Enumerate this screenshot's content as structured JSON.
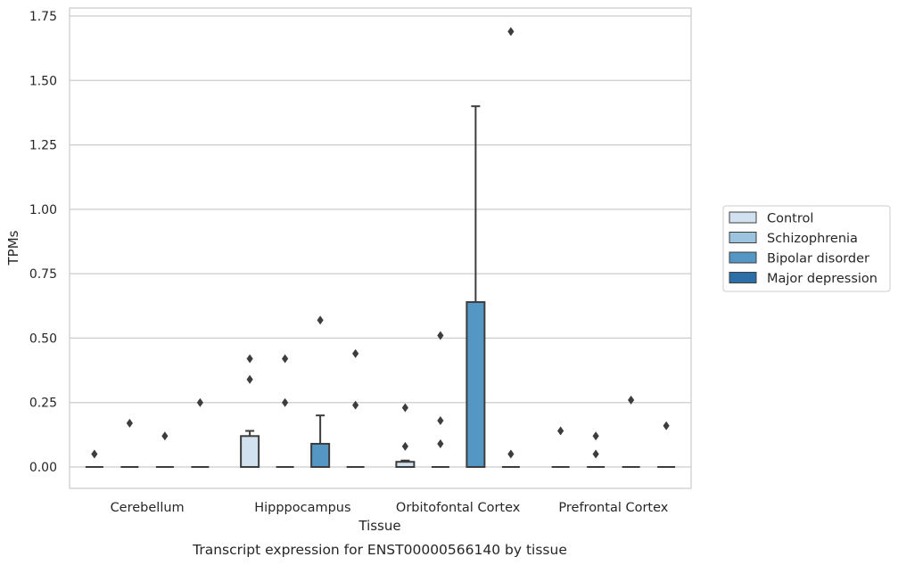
{
  "chart_data": {
    "type": "box",
    "title": "Transcript expression for ENST00000566140 by tissue",
    "xlabel": "Tissue",
    "ylabel": "TPMs",
    "ylim": [
      -0.08,
      1.77
    ],
    "yticks": [
      "0.00",
      "0.25",
      "0.50",
      "0.75",
      "1.00",
      "1.25",
      "1.50",
      "1.75"
    ],
    "grid": true,
    "legend_position": "right",
    "categories": [
      "Cerebellum",
      "Hipppocampus",
      "Orbitofontal Cortex",
      "Prefrontal Cortex"
    ],
    "series": [
      {
        "name": "Control",
        "color": "#d2e1f0",
        "boxes": [
          {
            "q1": 0,
            "median": 0,
            "q3": 0,
            "whisker_low": 0,
            "whisker_high": 0,
            "outliers": [
              0.05
            ]
          },
          {
            "q1": 0,
            "median": 0,
            "q3": 0.12,
            "whisker_low": 0,
            "whisker_high": 0.14,
            "outliers": [
              0.34,
              0.42
            ]
          },
          {
            "q1": 0,
            "median": 0,
            "q3": 0.02,
            "whisker_low": 0,
            "whisker_high": 0.025,
            "outliers": [
              0.08,
              0.23
            ]
          },
          {
            "q1": 0,
            "median": 0,
            "q3": 0,
            "whisker_low": 0,
            "whisker_high": 0,
            "outliers": [
              0.14
            ]
          }
        ]
      },
      {
        "name": "Schizophrenia",
        "color": "#9cc4de",
        "boxes": [
          {
            "q1": 0,
            "median": 0,
            "q3": 0,
            "whisker_low": 0,
            "whisker_high": 0,
            "outliers": [
              0.17
            ]
          },
          {
            "q1": 0,
            "median": 0,
            "q3": 0,
            "whisker_low": 0,
            "whisker_high": 0,
            "outliers": [
              0.25,
              0.42
            ]
          },
          {
            "q1": 0,
            "median": 0,
            "q3": 0,
            "whisker_low": 0,
            "whisker_high": 0,
            "outliers": [
              0.09,
              0.18,
              0.51
            ]
          },
          {
            "q1": 0,
            "median": 0,
            "q3": 0,
            "whisker_low": 0,
            "whisker_high": 0,
            "outliers": [
              0.05,
              0.12
            ]
          }
        ]
      },
      {
        "name": "Bipolar disorder",
        "color": "#5597c4",
        "boxes": [
          {
            "q1": 0,
            "median": 0,
            "q3": 0,
            "whisker_low": 0,
            "whisker_high": 0,
            "outliers": [
              0.12
            ]
          },
          {
            "q1": 0,
            "median": 0,
            "q3": 0.09,
            "whisker_low": 0,
            "whisker_high": 0.2,
            "outliers": [
              0.57
            ]
          },
          {
            "q1": 0,
            "median": 0,
            "q3": 0.64,
            "whisker_low": 0,
            "whisker_high": 1.4,
            "outliers": []
          },
          {
            "q1": 0,
            "median": 0,
            "q3": 0,
            "whisker_low": 0,
            "whisker_high": 0,
            "outliers": [
              0.26
            ]
          }
        ]
      },
      {
        "name": "Major depression",
        "color": "#2b6ea8",
        "boxes": [
          {
            "q1": 0,
            "median": 0,
            "q3": 0,
            "whisker_low": 0,
            "whisker_high": 0,
            "outliers": [
              0.25
            ]
          },
          {
            "q1": 0,
            "median": 0,
            "q3": 0,
            "whisker_low": 0,
            "whisker_high": 0,
            "outliers": [
              0.24,
              0.44
            ]
          },
          {
            "q1": 0,
            "median": 0,
            "q3": 0,
            "whisker_low": 0,
            "whisker_high": 0,
            "outliers": [
              0.05,
              1.69
            ]
          },
          {
            "q1": 0,
            "median": 0,
            "q3": 0,
            "whisker_low": 0,
            "whisker_high": 0,
            "outliers": [
              0.16
            ]
          }
        ]
      }
    ]
  }
}
